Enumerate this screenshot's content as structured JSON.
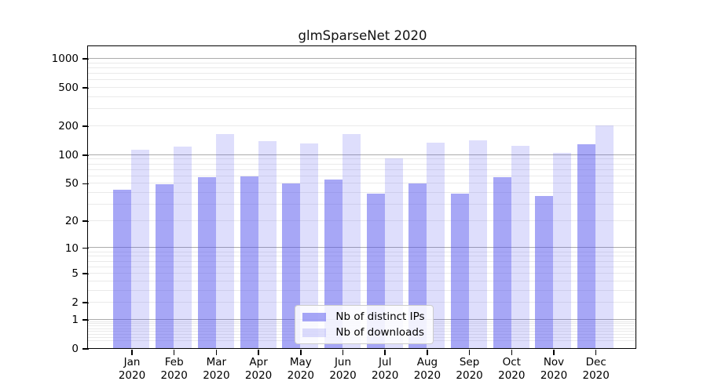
{
  "chart_data": {
    "type": "bar",
    "title": "glmSparseNet 2020",
    "categories": [
      "Jan",
      "Feb",
      "Mar",
      "Apr",
      "May",
      "Jun",
      "Jul",
      "Aug",
      "Sep",
      "Oct",
      "Nov",
      "Dec"
    ],
    "year_label": "2020",
    "series": [
      {
        "name": "Nb of distinct IPs",
        "color": "rgba(79,79,238,0.50)",
        "values": [
          43,
          49,
          58,
          59,
          50,
          55,
          39,
          50,
          39,
          58,
          37,
          128
        ]
      },
      {
        "name": "Nb of downloads",
        "color": "rgba(79,79,238,0.19)",
        "values": [
          112,
          122,
          165,
          138,
          132,
          163,
          91,
          133,
          141,
          123,
          105,
          200
        ]
      }
    ],
    "y_ticks": [
      0,
      1,
      2,
      5,
      10,
      20,
      50,
      100,
      200,
      500,
      1000
    ],
    "y_tick_labels": [
      "0",
      "1",
      "2",
      "5",
      "10",
      "20",
      "50",
      "100",
      "200",
      "500",
      "1000"
    ],
    "scale": "log1p",
    "ylim": [
      0,
      1300
    ],
    "grid": true,
    "legend_position": "lower center",
    "colors": {
      "major_grid": "#ababab",
      "minor_grid": "#eaeaea",
      "spine": "#000000"
    }
  }
}
